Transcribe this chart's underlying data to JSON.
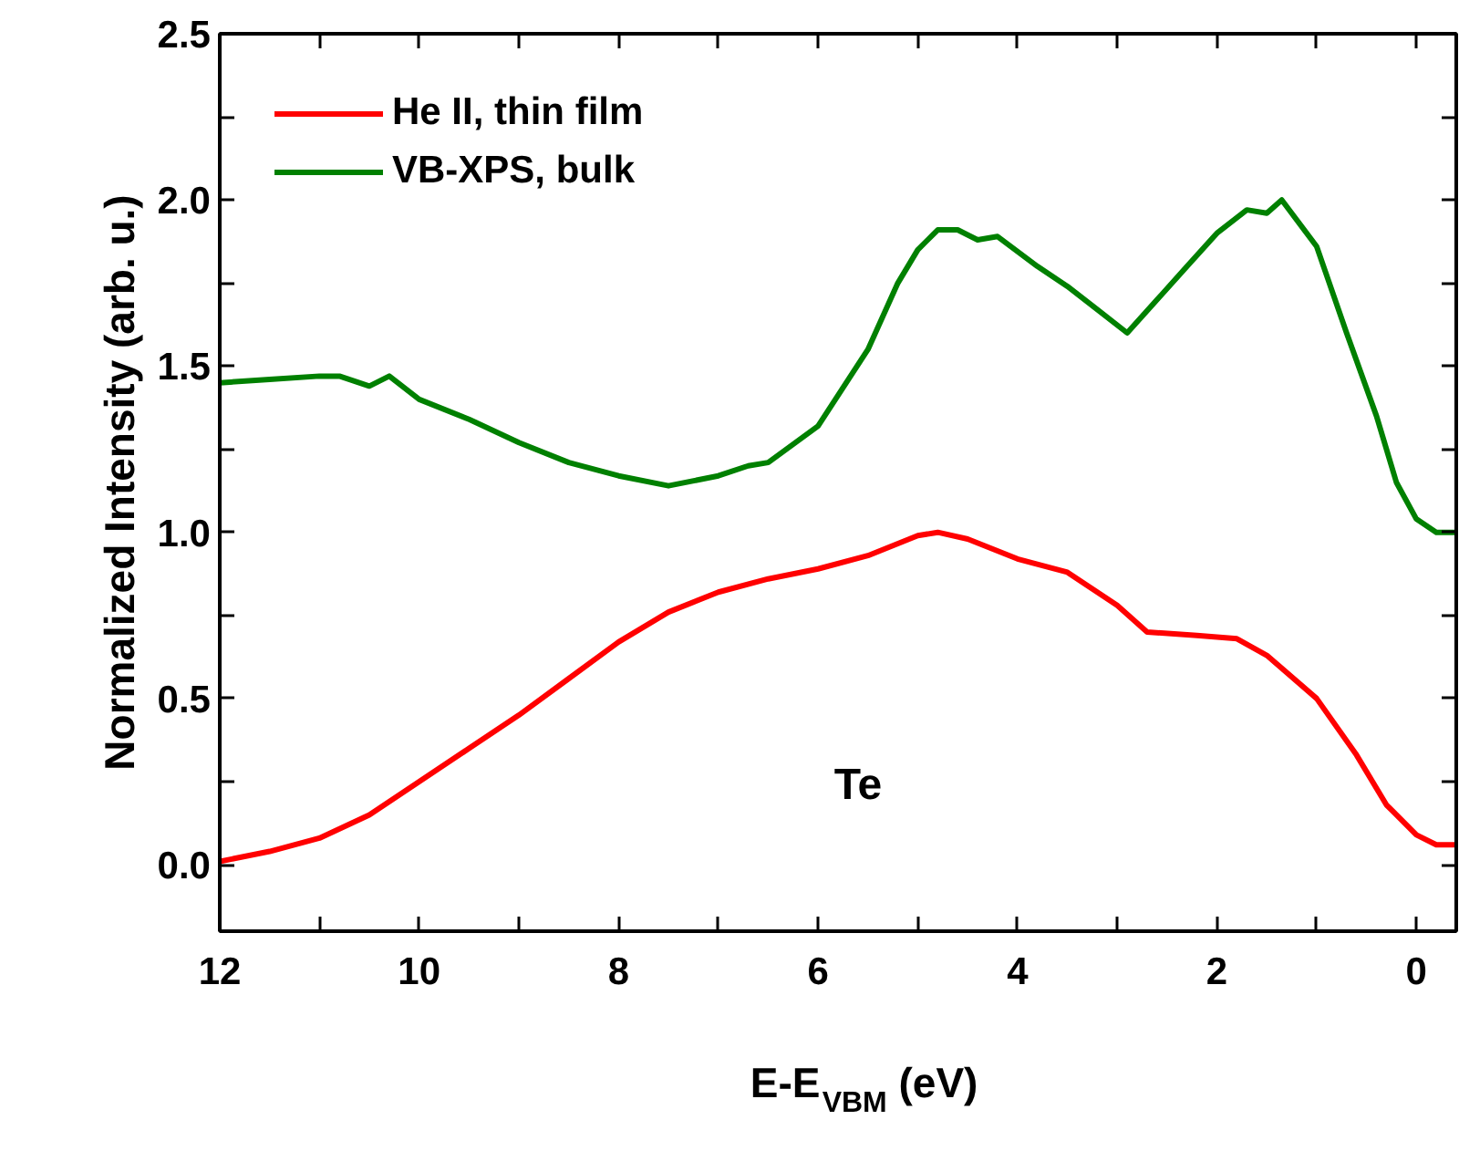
{
  "chart_data": {
    "type": "line",
    "xlabel": "E-E$_{VBM}$ (eV)",
    "ylabel": "Normalized Intensity (arb. u.)",
    "annotations": [
      "Te"
    ],
    "xlim": [
      12,
      -0.4
    ],
    "ylim": [
      -0.2,
      2.5
    ],
    "xticks": [
      12,
      {
        "value": 11,
        "label": null
      },
      10,
      {
        "value": 9,
        "label": null
      },
      8,
      {
        "value": 7,
        "label": null
      },
      6,
      {
        "value": 5,
        "label": null
      },
      4,
      {
        "value": 3,
        "label": null
      },
      2,
      {
        "value": 1,
        "label": null
      },
      0
    ],
    "yticks": [
      {
        "value": 0,
        "label": "0.0"
      },
      {
        "value": 0.25,
        "label": null
      },
      0.5,
      {
        "value": 0.75,
        "label": null
      },
      {
        "value": 1,
        "label": "1.0"
      },
      {
        "value": 1.25,
        "label": null
      },
      1.5,
      {
        "value": 1.75,
        "label": null
      },
      {
        "value": 2,
        "label": "2.0"
      },
      {
        "value": 2.25,
        "label": null
      },
      2.5
    ],
    "grid": false,
    "legend": "top left",
    "line_style": "solid",
    "marker": "none",
    "series": [
      {
        "name": "He II, thin film",
        "color": "#ff0000",
        "x": [
          12,
          11.5,
          11,
          10.5,
          10,
          9.5,
          9,
          8.5,
          8,
          7.5,
          7,
          6.5,
          6,
          5.5,
          5,
          4.8,
          4.5,
          4,
          3.5,
          3,
          2.7,
          2.2,
          1.8,
          1.5,
          1,
          0.6,
          0.3,
          0,
          -0.2,
          -0.4
        ],
        "values": [
          0.01,
          0.04,
          0.08,
          0.15,
          0.25,
          0.35,
          0.45,
          0.56,
          0.67,
          0.76,
          0.82,
          0.86,
          0.89,
          0.93,
          0.99,
          1.0,
          0.98,
          0.92,
          0.88,
          0.78,
          0.7,
          0.69,
          0.68,
          0.63,
          0.5,
          0.33,
          0.18,
          0.09,
          0.06,
          0.06
        ]
      },
      {
        "name": "VB-XPS, bulk",
        "color": "#008000",
        "x": [
          12,
          11.5,
          11,
          10.8,
          10.5,
          10.3,
          10,
          9.5,
          9,
          8.5,
          8,
          7.5,
          7,
          6.7,
          6.5,
          6,
          5.5,
          5.2,
          5,
          4.8,
          4.6,
          4.4,
          4.2,
          3.8,
          3.5,
          3.2,
          2.9,
          2.6,
          2.3,
          2,
          1.7,
          1.5,
          1.35,
          1,
          0.7,
          0.4,
          0.2,
          0,
          -0.2,
          -0.4
        ],
        "values": [
          1.45,
          1.46,
          1.47,
          1.47,
          1.44,
          1.47,
          1.4,
          1.34,
          1.27,
          1.21,
          1.17,
          1.14,
          1.17,
          1.2,
          1.21,
          1.32,
          1.55,
          1.75,
          1.85,
          1.91,
          1.91,
          1.88,
          1.89,
          1.8,
          1.74,
          1.67,
          1.6,
          1.7,
          1.8,
          1.9,
          1.97,
          1.96,
          2.0,
          1.86,
          1.6,
          1.35,
          1.15,
          1.04,
          1.0,
          1.0
        ]
      }
    ]
  }
}
